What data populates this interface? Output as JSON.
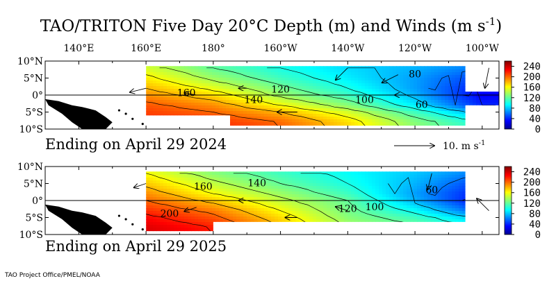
{
  "chart_data": {
    "type": "heatmap",
    "title": "TAO/TRITON Five Day 20°C Depth (m) and Winds (m s",
    "title_sup": "-1",
    "title_close": ")",
    "x_ticks": [
      "140°E",
      "160°E",
      "180°",
      "160°W",
      "140°W",
      "120°W",
      "100°W"
    ],
    "y_ticks": [
      "10°N",
      "5°N",
      "0°",
      "5°S",
      "10°S"
    ],
    "lon_range": [
      130,
      265
    ],
    "lat_range": [
      -10,
      10
    ],
    "colorbar": {
      "ticks": [
        "240",
        "200",
        "160",
        "120",
        "80",
        "40",
        "0"
      ],
      "range": [
        0,
        260
      ],
      "colormap": "jet"
    },
    "wind_key": {
      "label": "10.  m s",
      "sup": "-1",
      "value": 10
    },
    "credit": "TAO Project Office/PMEL/NOAA",
    "panels": [
      {
        "period_label": "Ending on April 29 2024",
        "contour_labels": [
          {
            "text": "160",
            "lon": 172,
            "lat": 0.5
          },
          {
            "text": "140",
            "lon": 192,
            "lat": -1.5
          },
          {
            "text": "120",
            "lon": 200,
            "lat": 1.5
          },
          {
            "text": "100",
            "lon": 225,
            "lat": -1.5
          },
          {
            "text": "80",
            "lon": 240,
            "lat": 6
          },
          {
            "text": "60",
            "lon": 242,
            "lat": -3
          }
        ],
        "depth_field": [
          {
            "lon": 160,
            "lat_values": [
              [
                8,
                150
              ],
              [
                5,
                165
              ],
              [
                2,
                180
              ],
              [
                0,
                190
              ],
              [
                -3,
                205
              ],
              [
                -5,
                210
              ],
              [
                -8,
                215
              ]
            ]
          },
          {
            "lon": 180,
            "lat_values": [
              [
                8,
                120
              ],
              [
                5,
                135
              ],
              [
                2,
                155
              ],
              [
                0,
                170
              ],
              [
                -3,
                190
              ],
              [
                -5,
                200
              ],
              [
                -8,
                215
              ]
            ]
          },
          {
            "lon": 200,
            "lat_values": [
              [
                8,
                100
              ],
              [
                5,
                110
              ],
              [
                2,
                125
              ],
              [
                0,
                135
              ],
              [
                -3,
                160
              ],
              [
                -5,
                180
              ],
              [
                -8,
                200
              ]
            ]
          },
          {
            "lon": 220,
            "lat_values": [
              [
                8,
                85
              ],
              [
                5,
                90
              ],
              [
                2,
                100
              ],
              [
                0,
                110
              ],
              [
                -3,
                130
              ],
              [
                -5,
                150
              ],
              [
                -8,
                170
              ]
            ]
          },
          {
            "lon": 240,
            "lat_values": [
              [
                8,
                75
              ],
              [
                5,
                70
              ],
              [
                2,
                70
              ],
              [
                0,
                75
              ],
              [
                -3,
                90
              ],
              [
                -5,
                110
              ],
              [
                -8,
                130
              ]
            ]
          },
          {
            "lon": 260,
            "lat_values": [
              [
                8,
                60
              ],
              [
                5,
                45
              ],
              [
                2,
                35
              ],
              [
                0,
                30
              ],
              [
                -3,
                40
              ],
              [
                -5,
                70
              ],
              [
                -8,
                100
              ]
            ]
          }
        ],
        "winds": [
          {
            "lon": 160,
            "lat": 2,
            "u": -4,
            "v": -1
          },
          {
            "lon": 175,
            "lat": 0,
            "u": -3,
            "v": 0.5
          },
          {
            "lon": 190,
            "lat": 2,
            "u": -2,
            "v": 0
          },
          {
            "lon": 205,
            "lat": -5,
            "u": -5,
            "v": 0
          },
          {
            "lon": 220,
            "lat": 8,
            "u": -3,
            "v": -3
          },
          {
            "lon": 235,
            "lat": 6,
            "u": -4,
            "v": -2
          },
          {
            "lon": 240,
            "lat": 0,
            "u": -5,
            "v": 0
          },
          {
            "lon": 262,
            "lat": 8,
            "u": -1,
            "v": -5
          }
        ]
      },
      {
        "period_label": "Ending on April 29 2025",
        "contour_labels": [
          {
            "text": "160",
            "lon": 177,
            "lat": 4
          },
          {
            "text": "140",
            "lon": 193,
            "lat": 5
          },
          {
            "text": "200",
            "lon": 167,
            "lat": -4
          },
          {
            "text": "120",
            "lon": 220,
            "lat": -2.5
          },
          {
            "text": "100",
            "lon": 228,
            "lat": -2
          },
          {
            "text": "60",
            "lon": 245,
            "lat": 3
          }
        ],
        "depth_field": [
          {
            "lon": 160,
            "lat_values": [
              [
                8,
                160
              ],
              [
                5,
                175
              ],
              [
                2,
                190
              ],
              [
                0,
                200
              ],
              [
                -3,
                215
              ],
              [
                -5,
                225
              ],
              [
                -8,
                235
              ]
            ]
          },
          {
            "lon": 180,
            "lat_values": [
              [
                8,
                130
              ],
              [
                5,
                145
              ],
              [
                2,
                160
              ],
              [
                0,
                175
              ],
              [
                -3,
                195
              ],
              [
                -5,
                205
              ],
              [
                -8,
                220
              ]
            ]
          },
          {
            "lon": 200,
            "lat_values": [
              [
                8,
                110
              ],
              [
                5,
                120
              ],
              [
                2,
                135
              ],
              [
                0,
                145
              ],
              [
                -3,
                160
              ],
              [
                -5,
                170
              ],
              [
                -8,
                180
              ]
            ]
          },
          {
            "lon": 220,
            "lat_values": [
              [
                8,
                95
              ],
              [
                5,
                100
              ],
              [
                2,
                110
              ],
              [
                0,
                120
              ],
              [
                -3,
                125
              ],
              [
                -5,
                130
              ],
              [
                -8,
                140
              ]
            ]
          },
          {
            "lon": 240,
            "lat_values": [
              [
                8,
                80
              ],
              [
                5,
                75
              ],
              [
                2,
                70
              ],
              [
                0,
                75
              ],
              [
                -3,
                95
              ],
              [
                -5,
                110
              ],
              [
                -8,
                125
              ]
            ]
          },
          {
            "lon": 260,
            "lat_values": [
              [
                8,
                60
              ],
              [
                5,
                45
              ],
              [
                2,
                35
              ],
              [
                0,
                30
              ],
              [
                -3,
                50
              ],
              [
                -5,
                75
              ],
              [
                -8,
                100
              ]
            ]
          }
        ],
        "winds": [
          {
            "lon": 160,
            "lat": 5,
            "u": -3,
            "v": -1
          },
          {
            "lon": 175,
            "lat": -2,
            "u": -3,
            "v": -1
          },
          {
            "lon": 190,
            "lat": 0,
            "u": -2,
            "v": 0
          },
          {
            "lon": 205,
            "lat": -5,
            "u": -3,
            "v": 0
          },
          {
            "lon": 220,
            "lat": -3,
            "u": -3,
            "v": 1
          },
          {
            "lon": 245,
            "lat": 8,
            "u": -1,
            "v": -4
          },
          {
            "lon": 262,
            "lat": -3,
            "u": -3,
            "v": 3
          }
        ]
      }
    ]
  }
}
